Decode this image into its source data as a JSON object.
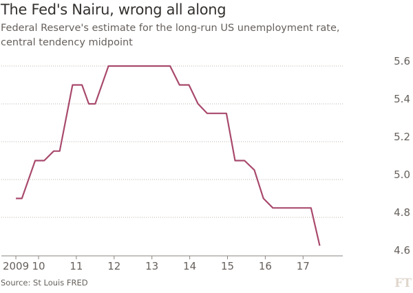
{
  "title": "The Fed's Nairu, wrong all along",
  "subtitle": "Federal Reserve's estimate for the long-run US unemployment rate, central tendency midpoint",
  "source": "Source: St Louis FRED",
  "logo": "FT",
  "chart_data": {
    "type": "line",
    "title": "The Fed's Nairu, wrong all along",
    "xlabel": "",
    "ylabel": "",
    "xlim": [
      2009.4,
      2017.6
    ],
    "ylim": [
      4.6,
      5.6
    ],
    "grid": true,
    "y_axis_side": "right",
    "line_color": "#a8496c",
    "xticks": [
      2009,
      2010,
      2011,
      2012,
      2013,
      2014,
      2015,
      2016,
      2017
    ],
    "xtick_labels": [
      "2009",
      "10",
      "11",
      "12",
      "13",
      "14",
      "15",
      "16",
      "17"
    ],
    "yticks": [
      4.6,
      4.8,
      5.0,
      5.2,
      5.4,
      5.6
    ],
    "ytick_labels": [
      "4.6",
      "4.8",
      "5.0",
      "5.2",
      "5.4",
      "5.6"
    ],
    "series": [
      {
        "x": [
          2009.4,
          2009.56,
          2009.91,
          2010.15,
          2010.4,
          2010.56,
          2010.9,
          2011.15,
          2011.33,
          2011.5,
          2011.85,
          2013.48,
          2013.73,
          2013.98,
          2014.22,
          2014.46,
          2014.97,
          2015.2,
          2015.45,
          2015.71,
          2015.95,
          2016.2,
          2017.21,
          2017.44
        ],
        "y": [
          4.9,
          4.9,
          5.1,
          5.1,
          5.15,
          5.15,
          5.5,
          5.5,
          5.4,
          5.4,
          5.6,
          5.6,
          5.5,
          5.5,
          5.4,
          5.35,
          5.35,
          5.1,
          5.1,
          5.05,
          4.9,
          4.85,
          4.85,
          4.65
        ]
      }
    ]
  }
}
